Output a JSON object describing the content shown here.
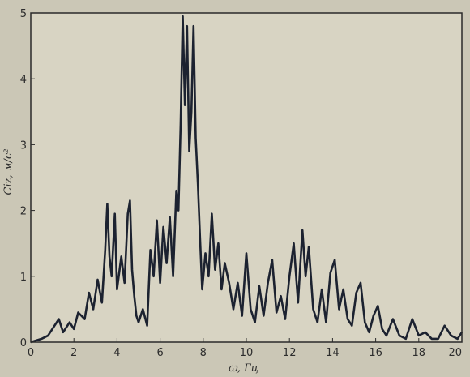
{
  "chart_data": {
    "type": "line",
    "title": "",
    "xlabel": "ꞷ, Гц",
    "ylabel": "Ciz, м/с²",
    "xlim": [
      0,
      20
    ],
    "ylim": [
      0,
      5
    ],
    "x_ticks": [
      "0",
      "2",
      "4",
      "6",
      "8",
      "10",
      "12",
      "14",
      "16",
      "18",
      "20"
    ],
    "y_ticks": [
      "0",
      "1",
      "2",
      "3",
      "4",
      "5"
    ],
    "grid": false,
    "colors": {
      "line": "#1c2230",
      "background": "#d8d4c3",
      "axes": "#2a2a2a"
    },
    "series": [
      {
        "x": [
          0,
          0.5,
          0.8,
          1.0,
          1.3,
          1.5,
          1.8,
          2.0,
          2.2,
          2.5,
          2.7,
          2.9,
          3.1,
          3.3,
          3.45,
          3.55,
          3.65,
          3.75,
          3.9,
          4.0,
          4.2,
          4.35,
          4.5,
          4.6,
          4.7,
          4.8,
          4.9,
          5.0,
          5.2,
          5.4,
          5.55,
          5.7,
          5.85,
          6.0,
          6.15,
          6.3,
          6.45,
          6.6,
          6.75,
          6.85,
          6.95,
          7.05,
          7.15,
          7.25,
          7.35,
          7.45,
          7.55,
          7.65,
          7.75,
          7.85,
          7.95,
          8.1,
          8.25,
          8.4,
          8.55,
          8.7,
          8.85,
          9.0,
          9.2,
          9.4,
          9.6,
          9.8,
          10.0,
          10.2,
          10.4,
          10.6,
          10.8,
          11.0,
          11.2,
          11.4,
          11.6,
          11.8,
          12.0,
          12.2,
          12.4,
          12.6,
          12.75,
          12.9,
          13.1,
          13.3,
          13.5,
          13.7,
          13.9,
          14.1,
          14.3,
          14.5,
          14.7,
          14.9,
          15.1,
          15.3,
          15.5,
          15.7,
          15.9,
          16.1,
          16.3,
          16.5,
          16.8,
          17.1,
          17.4,
          17.7,
          18.0,
          18.3,
          18.6,
          18.9,
          19.2,
          19.5,
          19.8,
          20.0
        ],
        "y": [
          0.0,
          0.05,
          0.1,
          0.2,
          0.35,
          0.15,
          0.3,
          0.2,
          0.45,
          0.35,
          0.75,
          0.5,
          0.95,
          0.6,
          1.4,
          2.1,
          1.3,
          1.0,
          1.95,
          0.8,
          1.3,
          0.9,
          1.95,
          2.15,
          1.1,
          0.7,
          0.4,
          0.3,
          0.5,
          0.25,
          1.4,
          1.0,
          1.85,
          0.9,
          1.75,
          1.2,
          1.9,
          1.0,
          2.3,
          2.0,
          3.3,
          4.95,
          3.6,
          4.8,
          2.9,
          3.5,
          4.8,
          3.1,
          2.4,
          1.6,
          0.8,
          1.35,
          1.0,
          1.95,
          1.1,
          1.5,
          0.8,
          1.2,
          0.9,
          0.5,
          0.9,
          0.4,
          1.35,
          0.5,
          0.3,
          0.85,
          0.4,
          0.9,
          1.25,
          0.45,
          0.7,
          0.35,
          1.0,
          1.5,
          0.6,
          1.7,
          1.0,
          1.45,
          0.5,
          0.3,
          0.8,
          0.3,
          1.05,
          1.25,
          0.5,
          0.8,
          0.35,
          0.25,
          0.75,
          0.9,
          0.3,
          0.15,
          0.4,
          0.55,
          0.2,
          0.1,
          0.35,
          0.1,
          0.05,
          0.35,
          0.1,
          0.15,
          0.05,
          0.05,
          0.25,
          0.1,
          0.05,
          0.15
        ]
      }
    ]
  }
}
